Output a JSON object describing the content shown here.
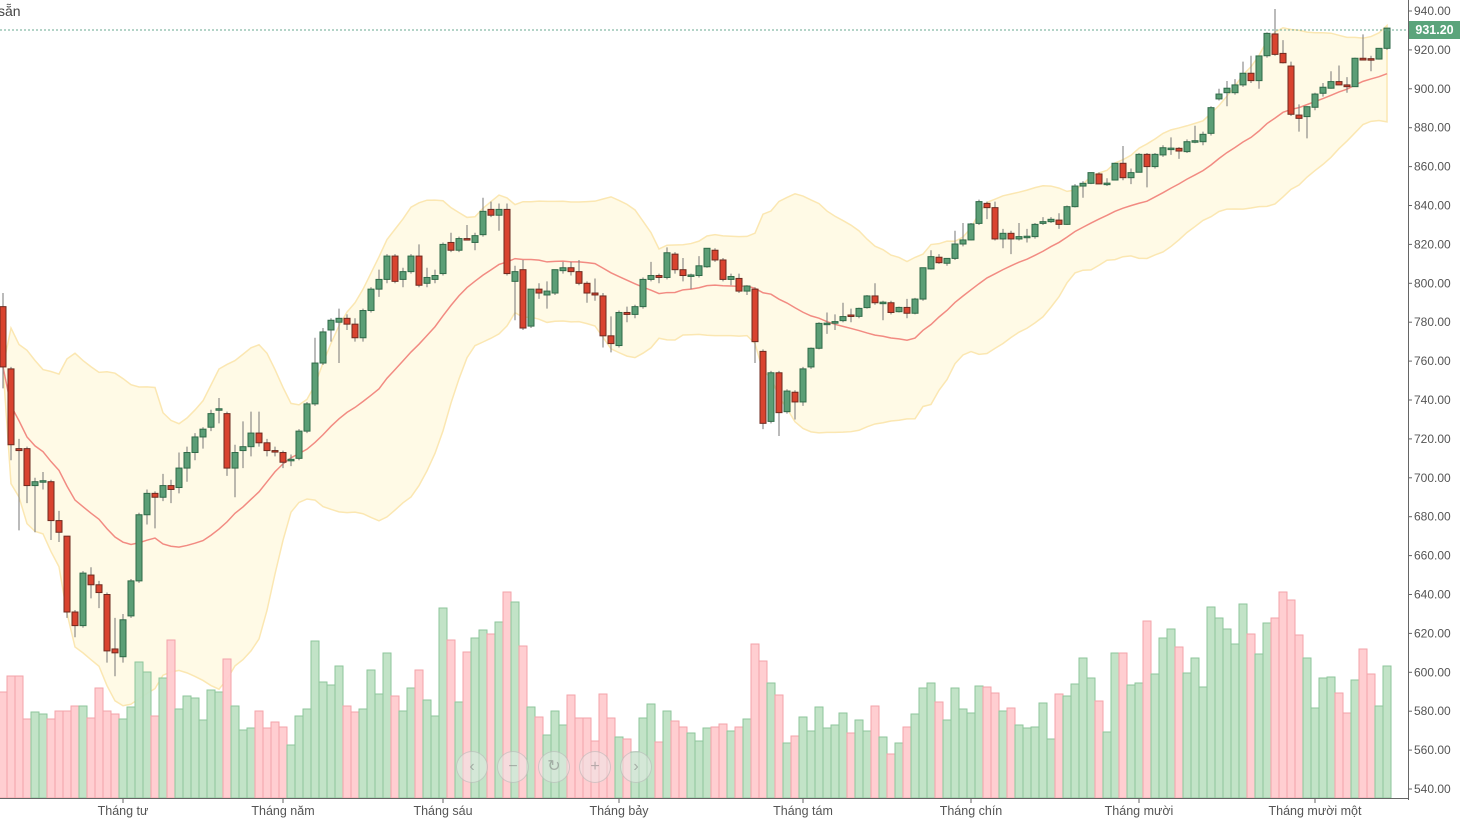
{
  "corner_text": "sẵn",
  "navigation": {
    "buttons": [
      {
        "name": "scroll-left",
        "icon": "chevron-left-icon",
        "glyph": "‹"
      },
      {
        "name": "zoom-out",
        "icon": "minus-icon",
        "glyph": "−"
      },
      {
        "name": "reset",
        "icon": "refresh-icon",
        "glyph": "↻"
      },
      {
        "name": "zoom-in",
        "icon": "plus-icon",
        "glyph": "+"
      },
      {
        "name": "scroll-right",
        "icon": "chevron-right-icon",
        "glyph": "›"
      }
    ]
  },
  "chart_data": {
    "type": "candlestick",
    "title": "",
    "last_price": "931.20",
    "ylim": [
      540,
      940
    ],
    "y_ticks": [
      "540.00",
      "560.00",
      "580.00",
      "600.00",
      "620.00",
      "640.00",
      "660.00",
      "680.00",
      "700.00",
      "720.00",
      "740.00",
      "760.00",
      "780.00",
      "800.00",
      "820.00",
      "840.00",
      "860.00",
      "880.00",
      "900.00",
      "920.00",
      "940.00"
    ],
    "x_labels": [
      {
        "label": "Tháng tư",
        "index": 15
      },
      {
        "label": "Tháng năm",
        "index": 35
      },
      {
        "label": "Tháng sáu",
        "index": 55
      },
      {
        "label": "Tháng bảy",
        "index": 77
      },
      {
        "label": "Tháng tám",
        "index": 100
      },
      {
        "label": "Tháng chín",
        "index": 121
      },
      {
        "label": "Tháng mười",
        "index": 142
      },
      {
        "label": "Tháng mười một",
        "index": 164
      }
    ],
    "indicators": {
      "bollinger_period": 20,
      "bollinger_stddev": 2
    },
    "colors": {
      "up": "#5b9e76",
      "down": "#d9432f",
      "volume_up": "#bfe2c4",
      "volume_down": "#ffcbcf",
      "band_fill": "#fffae6",
      "band_edge": "#fbe7b2",
      "middle_line": "#f28b82",
      "last_price": "#5ba47b"
    },
    "ohlc": [
      [
        788,
        795,
        746,
        757
      ],
      [
        756,
        757,
        709,
        717
      ],
      [
        715,
        720,
        673,
        714
      ],
      [
        715,
        716,
        687,
        696
      ],
      [
        696,
        700,
        672,
        698
      ],
      [
        698,
        703,
        694,
        698.5
      ],
      [
        698,
        699,
        668,
        678
      ],
      [
        678,
        683,
        667,
        672
      ],
      [
        670,
        670,
        628,
        631
      ],
      [
        631,
        632,
        618,
        624
      ],
      [
        624,
        652,
        623,
        651
      ],
      [
        650,
        654,
        638,
        645
      ],
      [
        645,
        647,
        633,
        641
      ],
      [
        640,
        641,
        605,
        611
      ],
      [
        612,
        628,
        598,
        610
      ],
      [
        608,
        630,
        605,
        627
      ],
      [
        629,
        648,
        628,
        647
      ],
      [
        647,
        682,
        646,
        681
      ],
      [
        681,
        694,
        676,
        692
      ],
      [
        692,
        693,
        674,
        690
      ],
      [
        690,
        702,
        688,
        696
      ],
      [
        696,
        699,
        687,
        694
      ],
      [
        695,
        713,
        692,
        705
      ],
      [
        705,
        716,
        698,
        713
      ],
      [
        713,
        723,
        709,
        721
      ],
      [
        721,
        726,
        715,
        725
      ],
      [
        726,
        735,
        724,
        733
      ],
      [
        735,
        741,
        728,
        735.5
      ],
      [
        733,
        734,
        701,
        705
      ],
      [
        705,
        717,
        690,
        713
      ],
      [
        714,
        729,
        705,
        716
      ],
      [
        716,
        734,
        711,
        723
      ],
      [
        723,
        734,
        716,
        718
      ],
      [
        718,
        720,
        711,
        714
      ],
      [
        714,
        716,
        711,
        713.5
      ],
      [
        713,
        714,
        705,
        708
      ],
      [
        709,
        712,
        706,
        709.5
      ],
      [
        710,
        725,
        709,
        724
      ],
      [
        724,
        739,
        723,
        738
      ],
      [
        738,
        772,
        737,
        759
      ],
      [
        759,
        777,
        758,
        775
      ],
      [
        776,
        782,
        770,
        781
      ],
      [
        780,
        787,
        759,
        782
      ],
      [
        782,
        784,
        776,
        779
      ],
      [
        779,
        782,
        770,
        772
      ],
      [
        772,
        787,
        770,
        786
      ],
      [
        786,
        798,
        785,
        797
      ],
      [
        797,
        807,
        793,
        802
      ],
      [
        802,
        815,
        800,
        814
      ],
      [
        814,
        815,
        800,
        801
      ],
      [
        802,
        808,
        798,
        806
      ],
      [
        806,
        815,
        805,
        814
      ],
      [
        814,
        820,
        798,
        799
      ],
      [
        800,
        808,
        798,
        803
      ],
      [
        802,
        807,
        800,
        804
      ],
      [
        805,
        821,
        804,
        820
      ],
      [
        821,
        826,
        816,
        817
      ],
      [
        817,
        824,
        816,
        823
      ],
      [
        823,
        830,
        822,
        822.3
      ],
      [
        821,
        826,
        817,
        824.5
      ],
      [
        825,
        844,
        824,
        837
      ],
      [
        838,
        842,
        834,
        835
      ],
      [
        835,
        841,
        827,
        838
      ],
      [
        838,
        841,
        804,
        805
      ],
      [
        801,
        809,
        781,
        806
      ],
      [
        807,
        812,
        776,
        777
      ],
      [
        778,
        797,
        777,
        797
      ],
      [
        797,
        800,
        792,
        795
      ],
      [
        794,
        801,
        787,
        796
      ],
      [
        795,
        807,
        794,
        807
      ],
      [
        806.5,
        811,
        805,
        808
      ],
      [
        808,
        811,
        804,
        806
      ],
      [
        806,
        812,
        799,
        800
      ],
      [
        800,
        801,
        790,
        795
      ],
      [
        795,
        802.5,
        791,
        794
      ],
      [
        793.5,
        795,
        767,
        773
      ],
      [
        773,
        783,
        764.5,
        769
      ],
      [
        768,
        786,
        767,
        785
      ],
      [
        785,
        788,
        780,
        784
      ],
      [
        784,
        789,
        782,
        788
      ],
      [
        788,
        803,
        787,
        802
      ],
      [
        802,
        811,
        801,
        804
      ],
      [
        804,
        805,
        800,
        803
      ],
      [
        803,
        818.5,
        802,
        815.7
      ],
      [
        815,
        816,
        805,
        807
      ],
      [
        807,
        813,
        801,
        804
      ],
      [
        804,
        805,
        797,
        804.3
      ],
      [
        804,
        814,
        803,
        809
      ],
      [
        808.5,
        818,
        808,
        818
      ],
      [
        817,
        818,
        811,
        812
      ],
      [
        812,
        813,
        801,
        802
      ],
      [
        802,
        805,
        799,
        803.5
      ],
      [
        802.5,
        805,
        795,
        796
      ],
      [
        796,
        799,
        794,
        798.6
      ],
      [
        797,
        798,
        759,
        770
      ],
      [
        765,
        766,
        725,
        728
      ],
      [
        729,
        755,
        728,
        754
      ],
      [
        754,
        755,
        721.5,
        733.5
      ],
      [
        734,
        745.5,
        733,
        744.6
      ],
      [
        744,
        745,
        730,
        739
      ],
      [
        739,
        757,
        737,
        756
      ],
      [
        757,
        767,
        756,
        766.6
      ],
      [
        766.6,
        780,
        766,
        779.4
      ],
      [
        779,
        785,
        774,
        779.5
      ],
      [
        779.5,
        784,
        776,
        780.3
      ],
      [
        780.8,
        790,
        780,
        782.9
      ],
      [
        783.7,
        787,
        780,
        783
      ],
      [
        783,
        787.5,
        782,
        787.1
      ],
      [
        787.5,
        794,
        787,
        793.5
      ],
      [
        793.5,
        800,
        789,
        790
      ],
      [
        790,
        791,
        781,
        790.3
      ],
      [
        790,
        791,
        784,
        785
      ],
      [
        785.4,
        788,
        785,
        787.6
      ],
      [
        787.6,
        792,
        782,
        784.6
      ],
      [
        784.6,
        792.5,
        784,
        791.9
      ],
      [
        791.9,
        808,
        791,
        808
      ],
      [
        807.4,
        817,
        807,
        813.7
      ],
      [
        813.4,
        815,
        810,
        810.6
      ],
      [
        810.3,
        813,
        809,
        812.8
      ],
      [
        812.8,
        827,
        812,
        820.2
      ],
      [
        820.2,
        831,
        819,
        822.3
      ],
      [
        822.3,
        831,
        822,
        830.5
      ],
      [
        830.8,
        843,
        830,
        842
      ],
      [
        841.1,
        842,
        833,
        838.9
      ],
      [
        838.9,
        842,
        822,
        822.8
      ],
      [
        822.8,
        828,
        818,
        825.7
      ],
      [
        825.7,
        827,
        815,
        822.8
      ],
      [
        822.8,
        831,
        822,
        824
      ],
      [
        824,
        828,
        821,
        824.2
      ],
      [
        824,
        831,
        823,
        830.3
      ],
      [
        830.8,
        834,
        830,
        831.7
      ],
      [
        831.7,
        834,
        831,
        832.9
      ],
      [
        832.5,
        836,
        828,
        830.3
      ],
      [
        830.3,
        840,
        830,
        839.4
      ],
      [
        839.4,
        851,
        839,
        850
      ],
      [
        850,
        852.5,
        844,
        851.4
      ],
      [
        851.4,
        857,
        851,
        856.9
      ],
      [
        856.2,
        857,
        851,
        851.1
      ],
      [
        851.4,
        854,
        850,
        851.5
      ],
      [
        853.1,
        862,
        853,
        861.7
      ],
      [
        861.7,
        870.6,
        853,
        854.3
      ],
      [
        854.3,
        859,
        851,
        856.9
      ],
      [
        857.1,
        867,
        857,
        866.3
      ],
      [
        866.3,
        867,
        849.3,
        860
      ],
      [
        860,
        867,
        859,
        866.3
      ],
      [
        866,
        871,
        865,
        869.7
      ],
      [
        869.4,
        875,
        866,
        869.5
      ],
      [
        869.4,
        870,
        864,
        868
      ],
      [
        867.7,
        874,
        867,
        872.8
      ],
      [
        872.8,
        881,
        872,
        873.3
      ],
      [
        872.8,
        878,
        871,
        876.6
      ],
      [
        877.1,
        891,
        876,
        890.3
      ],
      [
        894.8,
        900,
        894,
        897.3
      ],
      [
        898,
        904,
        891,
        900.3
      ],
      [
        898,
        905,
        897,
        902
      ],
      [
        902,
        914,
        901,
        908
      ],
      [
        908,
        917,
        903,
        904.2
      ],
      [
        904.2,
        917,
        900,
        916.9
      ],
      [
        917,
        929,
        916,
        928.5
      ],
      [
        928.2,
        941,
        917,
        917.7
      ],
      [
        918.2,
        925,
        913,
        913.4
      ],
      [
        911.7,
        914,
        886,
        886.9
      ],
      [
        886.5,
        892,
        878,
        884.8
      ],
      [
        885.7,
        891,
        874.5,
        890.8
      ],
      [
        890.5,
        898,
        889,
        897.3
      ],
      [
        897.7,
        903,
        896,
        900.8
      ],
      [
        900.3,
        909,
        900,
        903.7
      ],
      [
        903.7,
        912,
        902,
        902
      ],
      [
        902,
        906,
        898,
        901.1
      ],
      [
        901.1,
        916,
        901,
        915.7
      ],
      [
        915.7,
        928,
        915,
        914.8
      ],
      [
        915.5,
        917,
        909,
        915
      ],
      [
        915.3,
        921,
        915,
        920.8
      ],
      [
        920.8,
        931.2,
        920,
        931.2
      ]
    ],
    "volume_relative": [
      106,
      122,
      122,
      79,
      86,
      84,
      79,
      87,
      87,
      92,
      92,
      80,
      110,
      87,
      84,
      79,
      91,
      136,
      126,
      82,
      120,
      158,
      89,
      102,
      100,
      78,
      108,
      106,
      139,
      92,
      68,
      70,
      87,
      70,
      76,
      71,
      53,
      82,
      89,
      157,
      116,
      113,
      132,
      92,
      86,
      89,
      128,
      104,
      145,
      102,
      87,
      110,
      128,
      98,
      82,
      190,
      158,
      96,
      146,
      160,
      168,
      164,
      176,
      206,
      196,
      152,
      91,
      81,
      63,
      87,
      73,
      103,
      80,
      80,
      57,
      104,
      80,
      61,
      59,
      46,
      80,
      94,
      56,
      87,
      77,
      71,
      65,
      57,
      70,
      71,
      74,
      67,
      71,
      79,
      154,
      137,
      115,
      103,
      55,
      62,
      81,
      67,
      91,
      70,
      73,
      85,
      65,
      78,
      67,
      92,
      61,
      44,
      55,
      71,
      84,
      110,
      115,
      96,
      78,
      110,
      89,
      85,
      112,
      111,
      105,
      87,
      90,
      73,
      70,
      71,
      95,
      59,
      104,
      102,
      114,
      140,
      120,
      97,
      66,
      145,
      145,
      113,
      115,
      177,
      124,
      160,
      169,
      151,
      125,
      140,
      111,
      191,
      180,
      169,
      154,
      194,
      164,
      144,
      175,
      180,
      206,
      198,
      163,
      140,
      90,
      120,
      121,
      105,
      85,
      118,
      149,
      124,
      92,
      132
    ]
  }
}
